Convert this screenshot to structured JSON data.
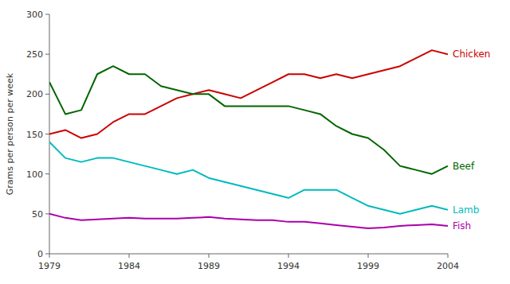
{
  "chart_data": {
    "type": "line",
    "ylabel": "Grams per person per week",
    "x": [
      1979,
      1980,
      1981,
      1982,
      1983,
      1984,
      1985,
      1986,
      1987,
      1988,
      1989,
      1990,
      1991,
      1992,
      1993,
      1994,
      1995,
      1996,
      1997,
      1998,
      1999,
      2000,
      2001,
      2002,
      2003,
      2004
    ],
    "series": [
      {
        "name": "Chicken",
        "color": "#cc0000",
        "values": [
          150,
          155,
          145,
          150,
          165,
          175,
          175,
          185,
          195,
          200,
          205,
          200,
          195,
          205,
          215,
          225,
          225,
          220,
          225,
          220,
          225,
          230,
          235,
          245,
          255,
          250
        ]
      },
      {
        "name": "Beef",
        "color": "#006600",
        "values": [
          215,
          175,
          180,
          225,
          235,
          225,
          225,
          210,
          205,
          200,
          200,
          185,
          185,
          185,
          185,
          185,
          180,
          175,
          160,
          150,
          145,
          130,
          110,
          105,
          100,
          110
        ]
      },
      {
        "name": "Lamb",
        "color": "#00bbbb",
        "values": [
          140,
          120,
          115,
          120,
          120,
          115,
          110,
          105,
          100,
          105,
          95,
          90,
          85,
          80,
          75,
          70,
          80,
          80,
          80,
          70,
          60,
          55,
          50,
          55,
          60,
          55
        ]
      },
      {
        "name": "Fish",
        "color": "#aa00aa",
        "values": [
          50,
          45,
          42,
          43,
          44,
          45,
          44,
          44,
          44,
          45,
          46,
          44,
          43,
          42,
          42,
          40,
          40,
          38,
          36,
          34,
          32,
          33,
          35,
          36,
          37,
          35
        ]
      }
    ],
    "xlim": [
      1979,
      2004
    ],
    "ylim": [
      0,
      300
    ],
    "xticks": [
      1979,
      1984,
      1989,
      1994,
      1999,
      2004
    ],
    "yticks": [
      0,
      50,
      100,
      150,
      200,
      250,
      300
    ],
    "grid": false
  }
}
